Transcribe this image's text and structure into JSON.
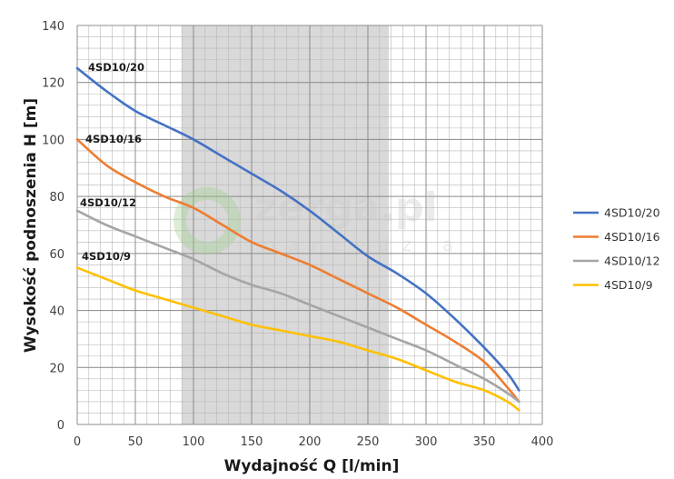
{
  "chart_data": {
    "type": "line",
    "title": "",
    "xlabel": "Wydajność Q [l/min]",
    "ylabel": "Wysokość podnoszenia H [m]",
    "xlim": [
      0,
      400
    ],
    "ylim": [
      0,
      140
    ],
    "xticks": [
      "0",
      "50",
      "100",
      "150",
      "200",
      "250",
      "300",
      "350",
      "400"
    ],
    "yticks": [
      "0",
      "20",
      "40",
      "60",
      "80",
      "100",
      "120",
      "140"
    ],
    "grid": true,
    "minor_grid": true,
    "legend_position": "right",
    "highlight_band": {
      "x_from": 90,
      "x_to": 268,
      "color": "#d9d9d9"
    },
    "series": [
      {
        "name": "4SD10/20",
        "color": "#4472c4",
        "x": [
          0,
          25,
          50,
          75,
          100,
          125,
          150,
          175,
          200,
          225,
          250,
          275,
          300,
          325,
          350,
          370,
          380
        ],
        "y": [
          125,
          117,
          110,
          105,
          100,
          94,
          88,
          82,
          75,
          67,
          59,
          53,
          46,
          37,
          27,
          18,
          12
        ]
      },
      {
        "name": "4SD10/16",
        "color": "#ed7d31",
        "x": [
          0,
          25,
          50,
          75,
          100,
          125,
          150,
          175,
          200,
          225,
          250,
          275,
          300,
          325,
          350,
          370,
          380
        ],
        "y": [
          100,
          91,
          85,
          80,
          76,
          70,
          64,
          60,
          56,
          51,
          46,
          41,
          35,
          29,
          22,
          13,
          8
        ]
      },
      {
        "name": "4SD10/12",
        "color": "#a5a5a5",
        "x": [
          0,
          25,
          50,
          75,
          100,
          125,
          150,
          175,
          200,
          225,
          250,
          275,
          300,
          325,
          350,
          370,
          380
        ],
        "y": [
          75,
          70,
          66,
          62,
          58,
          53,
          49,
          46,
          42,
          38,
          34,
          30,
          26,
          21,
          16,
          11,
          8
        ]
      },
      {
        "name": "4SD10/9",
        "color": "#ffc000",
        "x": [
          0,
          25,
          50,
          75,
          100,
          125,
          150,
          175,
          200,
          225,
          250,
          275,
          300,
          325,
          350,
          370,
          380
        ],
        "y": [
          55,
          51,
          47,
          44,
          41,
          38,
          35,
          33,
          31,
          29,
          26,
          23,
          19,
          15,
          12,
          8,
          5
        ]
      }
    ],
    "series_labels": [
      "4SD10/20",
      "4SD10/16",
      "4SD10/12",
      "4SD10/9"
    ]
  },
  "watermark": {
    "brand": "zerga.pl",
    "tagline": "narzędzia"
  }
}
